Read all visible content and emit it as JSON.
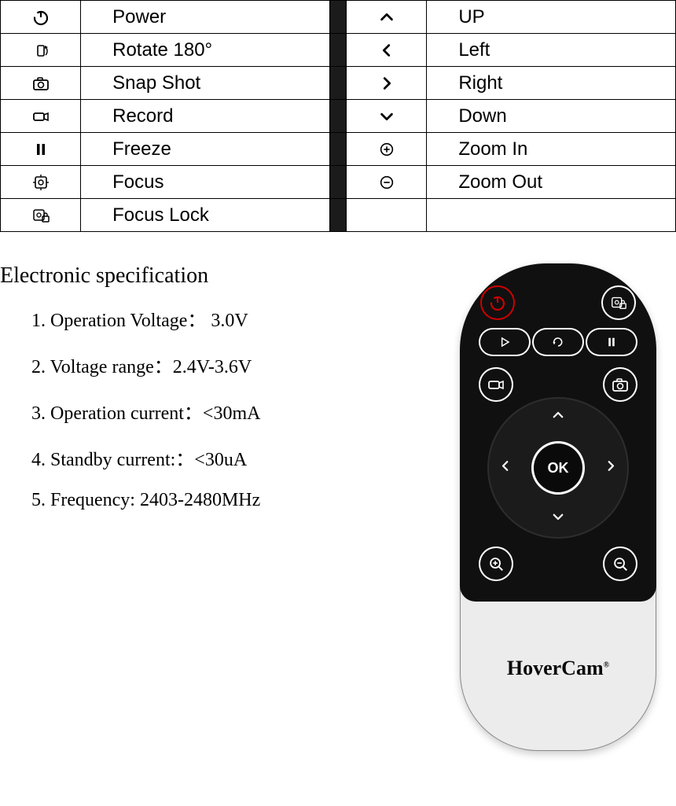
{
  "colors": {
    "border": "#000000",
    "divider_bg": "#1b1b1b",
    "text": "#000000",
    "remote_body": "#ececec",
    "remote_top": "#101010",
    "power_ring": "#cc0000",
    "btn_outline": "#ffffff"
  },
  "fonts": {
    "table": {
      "family": "Arial",
      "size_pt": 18
    },
    "spec_title": {
      "family": "Times New Roman",
      "size_pt": 21
    },
    "spec_body": {
      "family": "Times New Roman",
      "size_pt": 18
    }
  },
  "function_table": {
    "rows": [
      {
        "left_icon": "power",
        "left_label": "Power",
        "right_icon": "up",
        "right_label": "UP"
      },
      {
        "left_icon": "rotate",
        "left_label": "Rotate  180°",
        "right_icon": "left",
        "right_label": "Left"
      },
      {
        "left_icon": "snapshot",
        "left_label": "Snap Shot",
        "right_icon": "right",
        "right_label": "Right"
      },
      {
        "left_icon": "record",
        "left_label": "Record",
        "right_icon": "down",
        "right_label": "Down"
      },
      {
        "left_icon": "freeze",
        "left_label": "Freeze",
        "right_icon": "zoomin",
        "right_label": "Zoom In"
      },
      {
        "left_icon": "focus",
        "left_label": "Focus",
        "right_icon": "zoomout",
        "right_label": "Zoom Out"
      },
      {
        "left_icon": "focuslock",
        "left_label": "Focus Lock",
        "right_icon": "",
        "right_label": ""
      }
    ]
  },
  "spec": {
    "title": "Electronic specification",
    "items": [
      "1. Operation Voltage：   3.0V",
      "2. Voltage range：2.4V-3.6V",
      "3. Operation current：<30mA",
      "4. Standby current:：<30uA",
      "5. Frequency: 2403-2480MHz"
    ]
  },
  "remote": {
    "brand": "HoverCam",
    "brand_suffix": "®",
    "ok_label": "OK"
  }
}
